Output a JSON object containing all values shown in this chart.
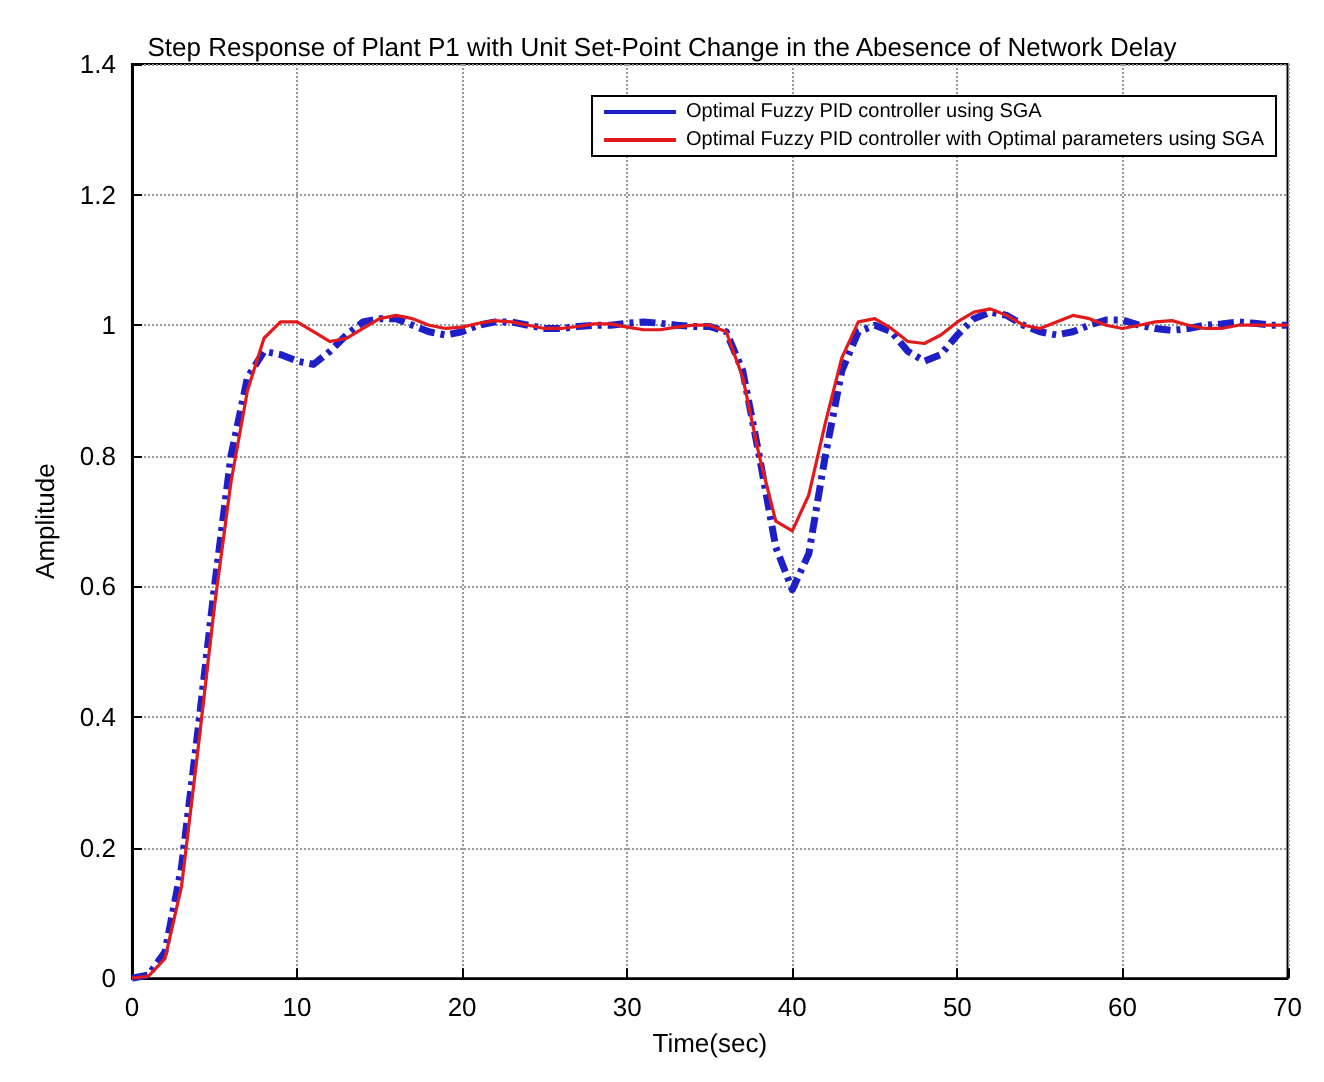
{
  "chart_data": {
    "type": "line",
    "title": "Step Response of Plant P1 with Unit Set-Point Change in the Abesence of Network Delay",
    "xlabel": "Time(sec)",
    "ylabel": "Amplitude",
    "x": [
      0,
      1,
      2,
      3,
      4,
      5,
      6,
      7,
      8,
      9,
      10,
      11,
      12,
      13,
      14,
      15,
      16,
      17,
      18,
      19,
      20,
      21,
      22,
      23,
      24,
      25,
      26,
      27,
      28,
      29,
      30,
      31,
      32,
      33,
      34,
      35,
      36,
      37,
      38,
      39,
      40,
      41,
      42,
      43,
      44,
      45,
      46,
      47,
      48,
      49,
      50,
      51,
      52,
      53,
      54,
      55,
      56,
      57,
      58,
      59,
      60,
      61,
      62,
      63,
      64,
      65,
      66,
      67,
      68,
      69,
      70
    ],
    "series": [
      {
        "name": "Optimal Fuzzy PID controller using SGA",
        "color": "#1f1fc8",
        "line_style": "dashed",
        "values": [
          0,
          0.005,
          0.04,
          0.17,
          0.38,
          0.6,
          0.8,
          0.92,
          0.96,
          0.955,
          0.945,
          0.94,
          0.96,
          0.985,
          1.005,
          1.01,
          1.01,
          1.0,
          0.99,
          0.985,
          0.99,
          1.0,
          1.005,
          1.005,
          1.0,
          0.995,
          0.995,
          0.998,
          1.0,
          1.0,
          1.003,
          1.005,
          1.003,
          1.0,
          0.998,
          0.998,
          0.99,
          0.93,
          0.8,
          0.66,
          0.595,
          0.65,
          0.8,
          0.93,
          0.99,
          1.0,
          0.99,
          0.96,
          0.945,
          0.955,
          0.985,
          1.01,
          1.02,
          1.015,
          1.0,
          0.99,
          0.985,
          0.99,
          1.0,
          1.008,
          1.008,
          1.0,
          0.995,
          0.992,
          0.995,
          1.0,
          1.002,
          1.005,
          1.003,
          1.0,
          1.0
        ]
      },
      {
        "name": "Optimal Fuzzy PID controller with Optimal parameters using SGA",
        "color": "#e31a1c",
        "line_style": "solid",
        "values": [
          0,
          0.003,
          0.03,
          0.14,
          0.35,
          0.57,
          0.76,
          0.9,
          0.98,
          1.005,
          1.005,
          0.99,
          0.975,
          0.98,
          0.995,
          1.01,
          1.015,
          1.01,
          1.0,
          0.995,
          0.997,
          1.003,
          1.007,
          1.005,
          1.0,
          0.995,
          0.995,
          0.998,
          1.002,
          1.002,
          0.997,
          0.993,
          0.993,
          0.997,
          1.0,
          1.0,
          0.99,
          0.92,
          0.8,
          0.7,
          0.685,
          0.74,
          0.85,
          0.95,
          1.005,
          1.01,
          0.995,
          0.975,
          0.972,
          0.985,
          1.005,
          1.02,
          1.025,
          1.015,
          1.0,
          0.995,
          1.005,
          1.015,
          1.01,
          1.0,
          0.995,
          1.0,
          1.005,
          1.007,
          1.0,
          0.995,
          0.995,
          1.0,
          1.0,
          1.0,
          1.0
        ]
      }
    ],
    "xlim": [
      0,
      70
    ],
    "xticks": [
      0,
      10,
      20,
      30,
      40,
      50,
      60,
      70
    ],
    "ylim": [
      0,
      1.4
    ],
    "yticks": [
      0,
      0.2,
      0.4,
      0.6,
      0.8,
      1,
      1.2,
      1.4
    ],
    "grid": true,
    "legend": "top right",
    "marker": "none"
  }
}
